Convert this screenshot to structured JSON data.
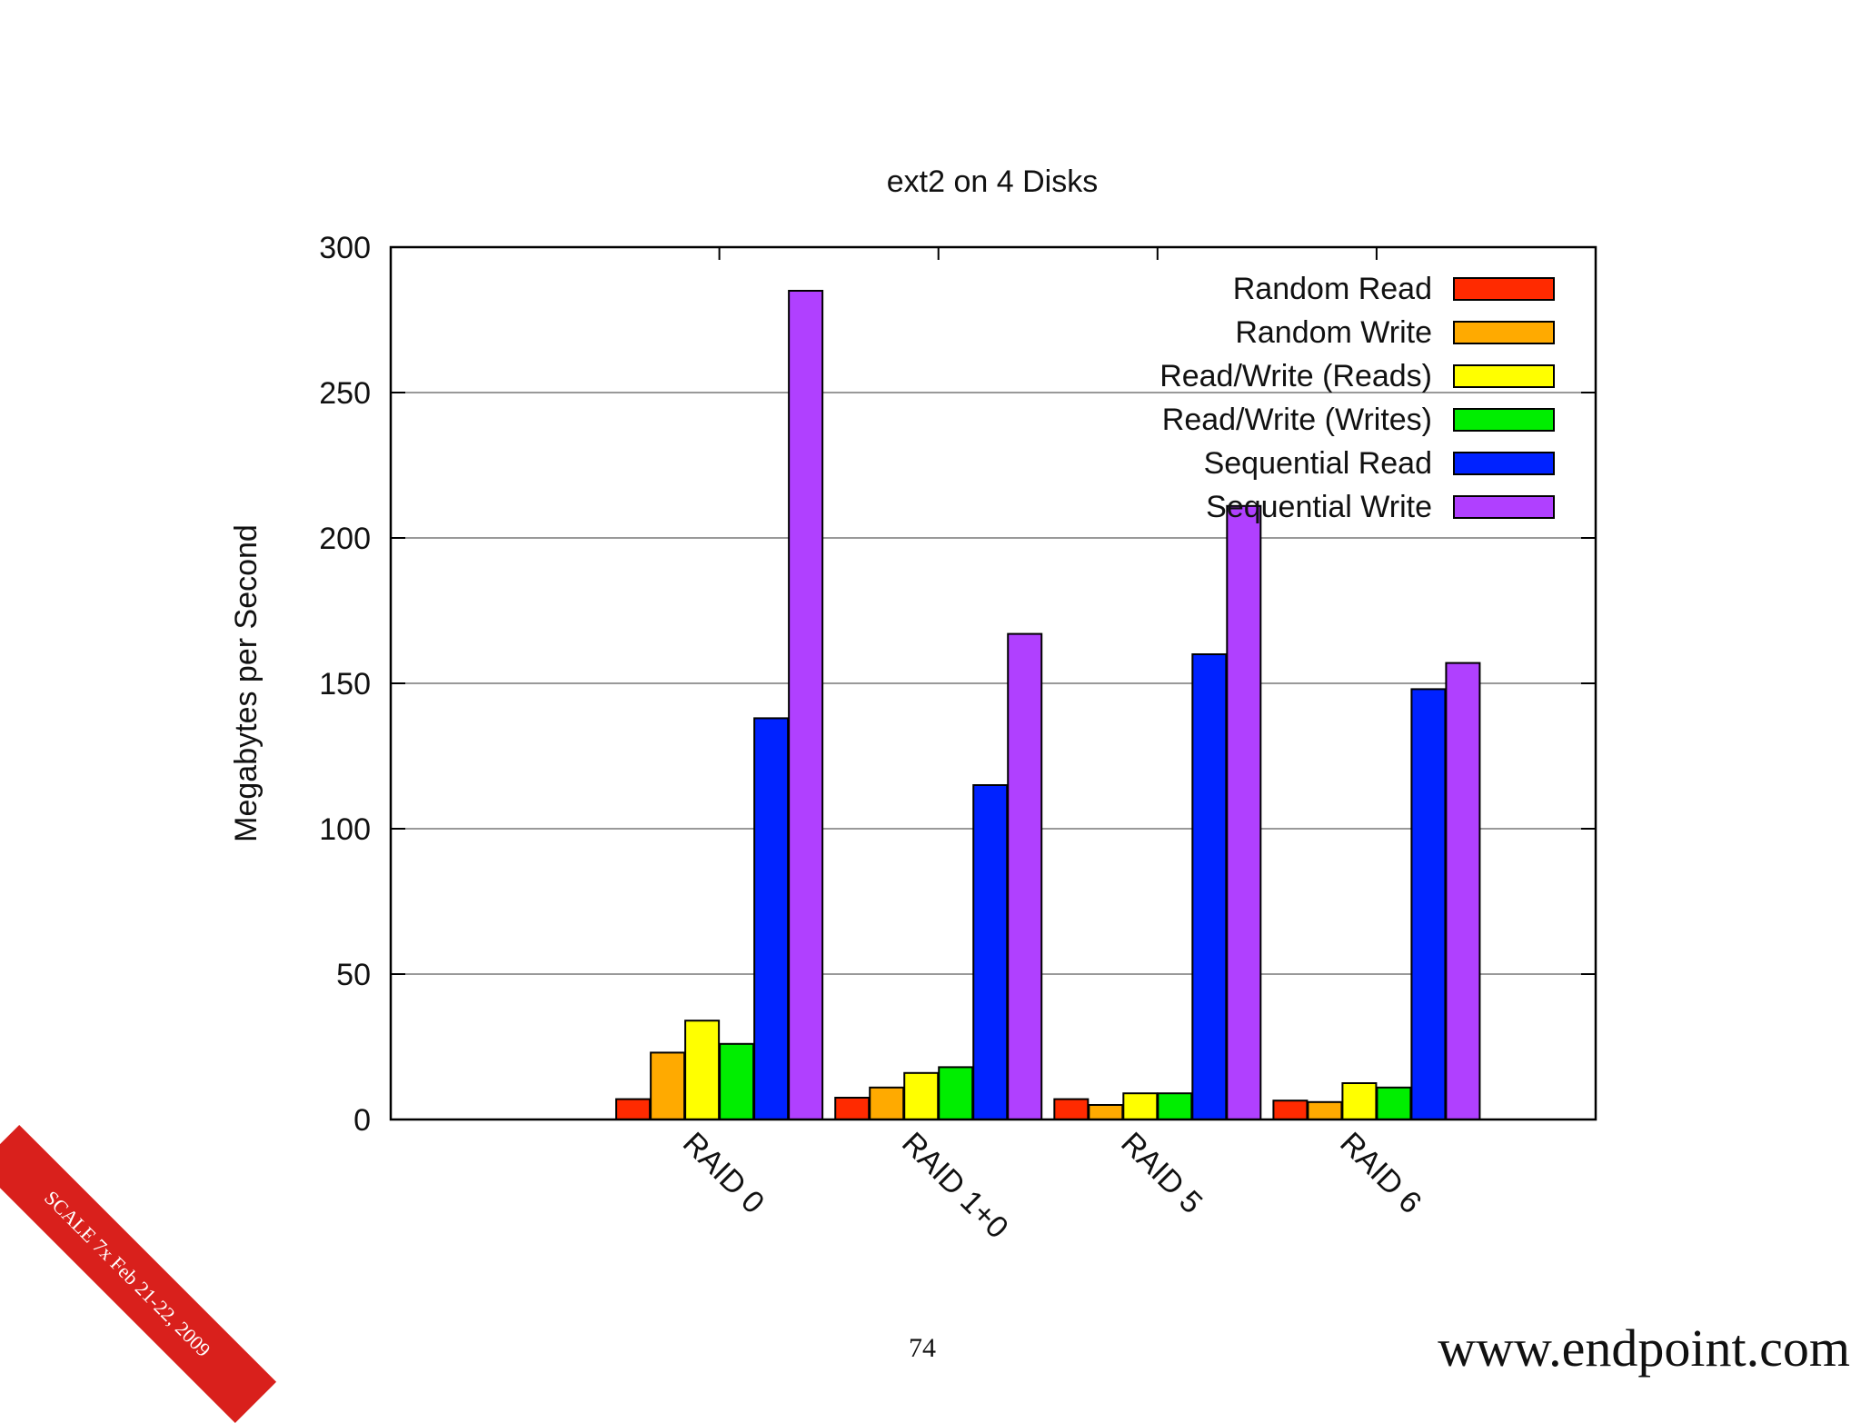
{
  "chart_data": {
    "type": "bar",
    "title": "ext2 on 4 Disks",
    "xlabel": "",
    "ylabel": "Megabytes per Second",
    "ylim": [
      0,
      300
    ],
    "yticks": [
      0,
      50,
      100,
      150,
      200,
      250,
      300
    ],
    "categories": [
      "RAID 0",
      "RAID 1+0",
      "RAID 5",
      "RAID 6"
    ],
    "series": [
      {
        "name": "Random Read",
        "color": "#ff2a00",
        "values": [
          7,
          7.5,
          7,
          6.5
        ]
      },
      {
        "name": "Random Write",
        "color": "#ffaa00",
        "values": [
          23,
          11,
          5,
          6
        ]
      },
      {
        "name": "Read/Write (Reads)",
        "color": "#ffff00",
        "values": [
          34,
          16,
          9,
          12.5
        ]
      },
      {
        "name": "Read/Write (Writes)",
        "color": "#00ee00",
        "values": [
          26,
          18,
          9,
          11
        ]
      },
      {
        "name": "Sequential Read",
        "color": "#0022ff",
        "values": [
          138,
          115,
          160,
          148
        ]
      },
      {
        "name": "Sequential Write",
        "color": "#b040ff",
        "values": [
          285,
          167,
          211,
          157
        ]
      }
    ],
    "grid": true,
    "legend_position": "top-right"
  },
  "footer": {
    "page_number": "74",
    "url": "www.endpoint.com",
    "corner_label": "SCALE 7x Feb 21-22, 2009"
  }
}
